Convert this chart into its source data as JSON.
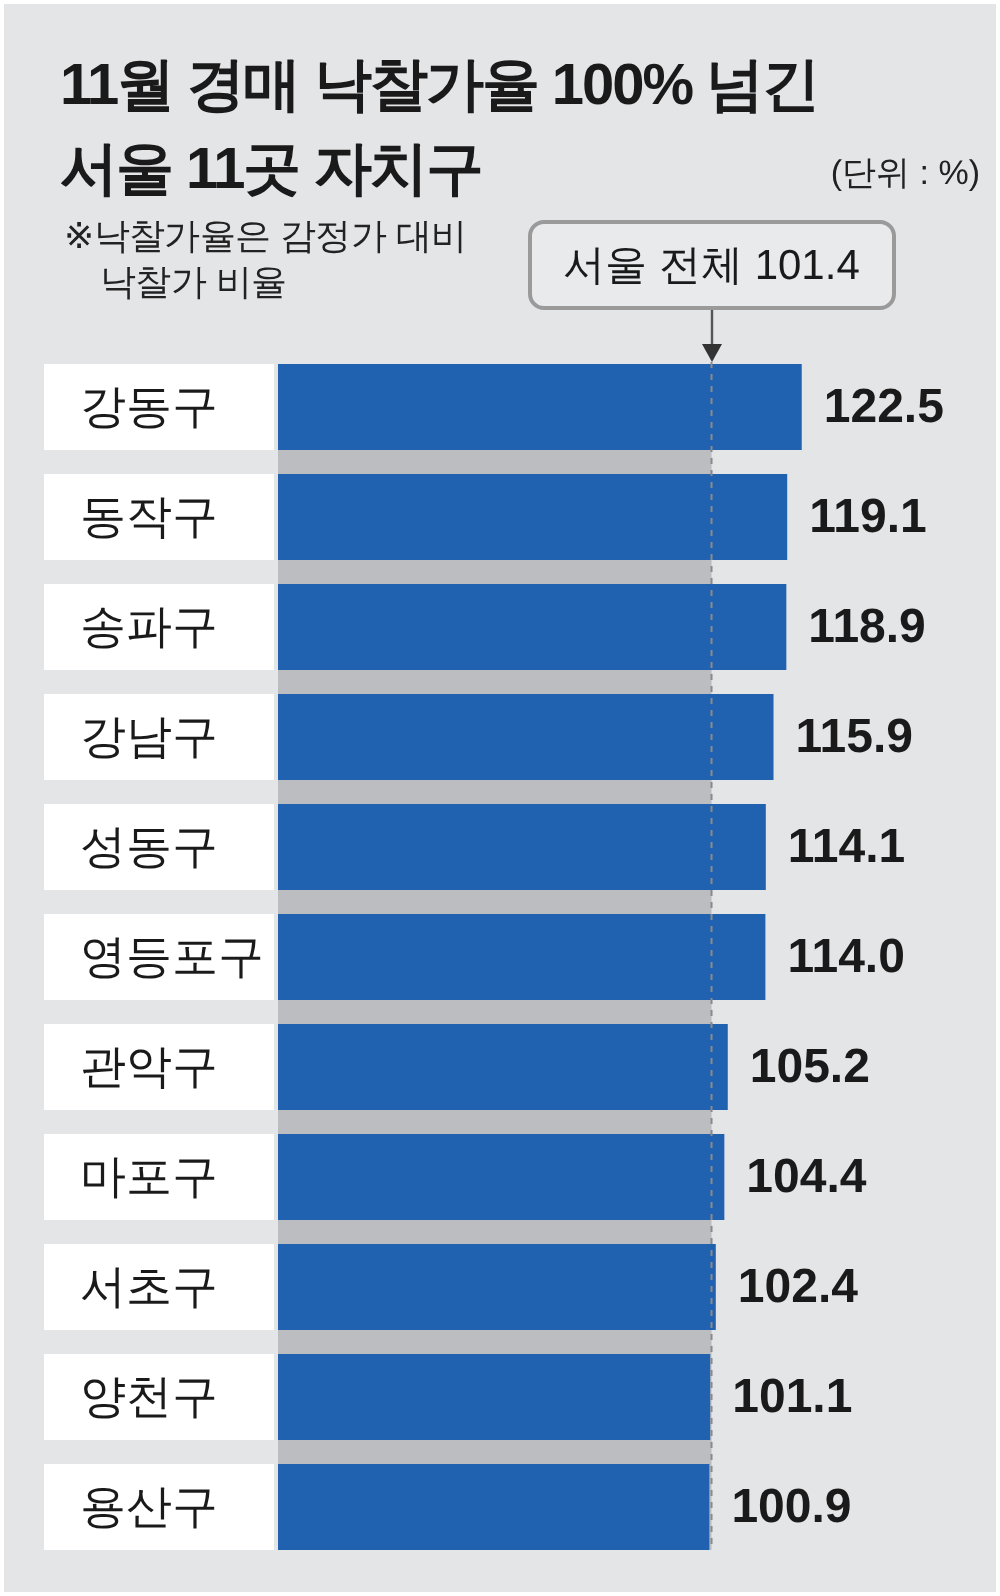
{
  "chart_data": {
    "type": "bar",
    "orientation": "horizontal",
    "title": "11월 경매 낙찰가율 100% 넘긴\n서울 11곳 자치구",
    "subtitle": "(단위 : %)",
    "annotations": [
      "※낙찰가율은 감정가 대비\n낙찰가 비율"
    ],
    "categories": [
      "강동구",
      "동작구",
      "송파구",
      "강남구",
      "성동구",
      "영등포구",
      "관악구",
      "마포구",
      "서초구",
      "양천구",
      "용산구"
    ],
    "values": [
      122.5,
      119.1,
      118.9,
      115.9,
      114.1,
      114.0,
      105.2,
      104.4,
      102.4,
      101.1,
      100.9
    ],
    "value_labels": [
      "122.5",
      "119.1",
      "118.9",
      "115.9",
      "114.1",
      "114.0",
      "105.2",
      "104.4",
      "102.4",
      "101.1",
      "100.9"
    ],
    "color": "#2162b0",
    "tick_labels": "y",
    "ref_lines": [
      {
        "axis": "x",
        "value": 101.4,
        "label": "서울 전체 101.4",
        "color": "#8a8a8a",
        "line_style": "dashed"
      }
    ],
    "bands": [
      {
        "axis": "x",
        "from": 0,
        "to": 101.4,
        "color": "#bcbdc0"
      }
    ]
  }
}
